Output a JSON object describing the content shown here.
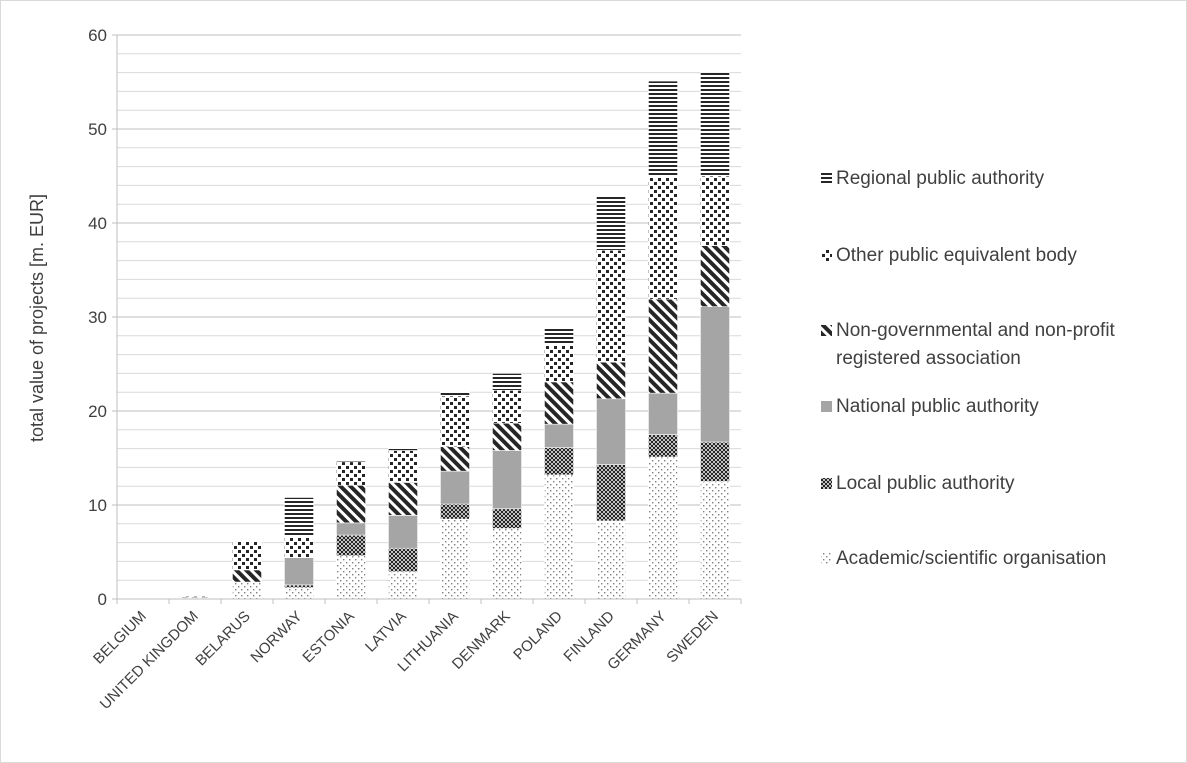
{
  "chart_data": {
    "type": "bar",
    "stacked": true,
    "title": "",
    "xlabel": "",
    "ylabel": "total value of projects [m. EUR]",
    "ylim": [
      0,
      60
    ],
    "yticks": [
      0,
      10,
      20,
      30,
      40,
      50,
      60
    ],
    "grid": true,
    "legend_position": "right",
    "categories": [
      "BELGIUM",
      "UNITED KINGDOM",
      "BELARUS",
      "NORWAY",
      "ESTONIA",
      "LATVIA",
      "LITHUANIA",
      "DENMARK",
      "POLAND",
      "FINLAND",
      "GERMANY",
      "SWEDEN"
    ],
    "series": [
      {
        "name": "Academic/scientific organisation",
        "pattern": "dots-sparse",
        "values": [
          0,
          0.1,
          1.8,
          1.2,
          4.6,
          2.9,
          8.5,
          7.5,
          13.2,
          8.3,
          15.1,
          12.5
        ]
      },
      {
        "name": "Local public authority",
        "pattern": "checker-dense",
        "values": [
          0,
          0,
          0,
          0.3,
          2.2,
          2.5,
          1.6,
          2.1,
          2.9,
          6.0,
          2.4,
          4.2
        ]
      },
      {
        "name": "National public authority",
        "pattern": "solid-grey",
        "values": [
          0,
          0,
          0,
          2.9,
          1.3,
          3.5,
          3.5,
          6.2,
          2.5,
          7.0,
          4.4,
          14.4
        ]
      },
      {
        "name": "Non-governmental and non-profit registered association",
        "pattern": "diagonal",
        "values": [
          0,
          0.1,
          1.3,
          0,
          4.0,
          3.5,
          2.6,
          2.9,
          4.5,
          3.9,
          10.0,
          6.5
        ]
      },
      {
        "name": "Other public equivalent body",
        "pattern": "dots-large",
        "values": [
          0,
          0.1,
          3.1,
          2.2,
          2.5,
          3.4,
          5.4,
          3.5,
          3.9,
          11.9,
          13.0,
          7.4
        ]
      },
      {
        "name": "Regional public authority",
        "pattern": "horizontal",
        "values": [
          0,
          0,
          0.2,
          4.2,
          0.3,
          0.3,
          0.5,
          1.8,
          1.9,
          5.7,
          10.2,
          11.0
        ]
      }
    ],
    "legend_display": [
      {
        "lines": [
          "Regional public authority"
        ],
        "series_index": 5
      },
      {
        "lines": [
          "Other public equivalent body"
        ],
        "series_index": 4
      },
      {
        "lines": [
          "Non-governmental and non-profit",
          "registered association"
        ],
        "series_index": 3
      },
      {
        "lines": [
          "National public authority"
        ],
        "series_index": 2
      },
      {
        "lines": [
          "Local public authority"
        ],
        "series_index": 1
      },
      {
        "lines": [
          "Academic/scientific organisation"
        ],
        "series_index": 0
      }
    ]
  }
}
